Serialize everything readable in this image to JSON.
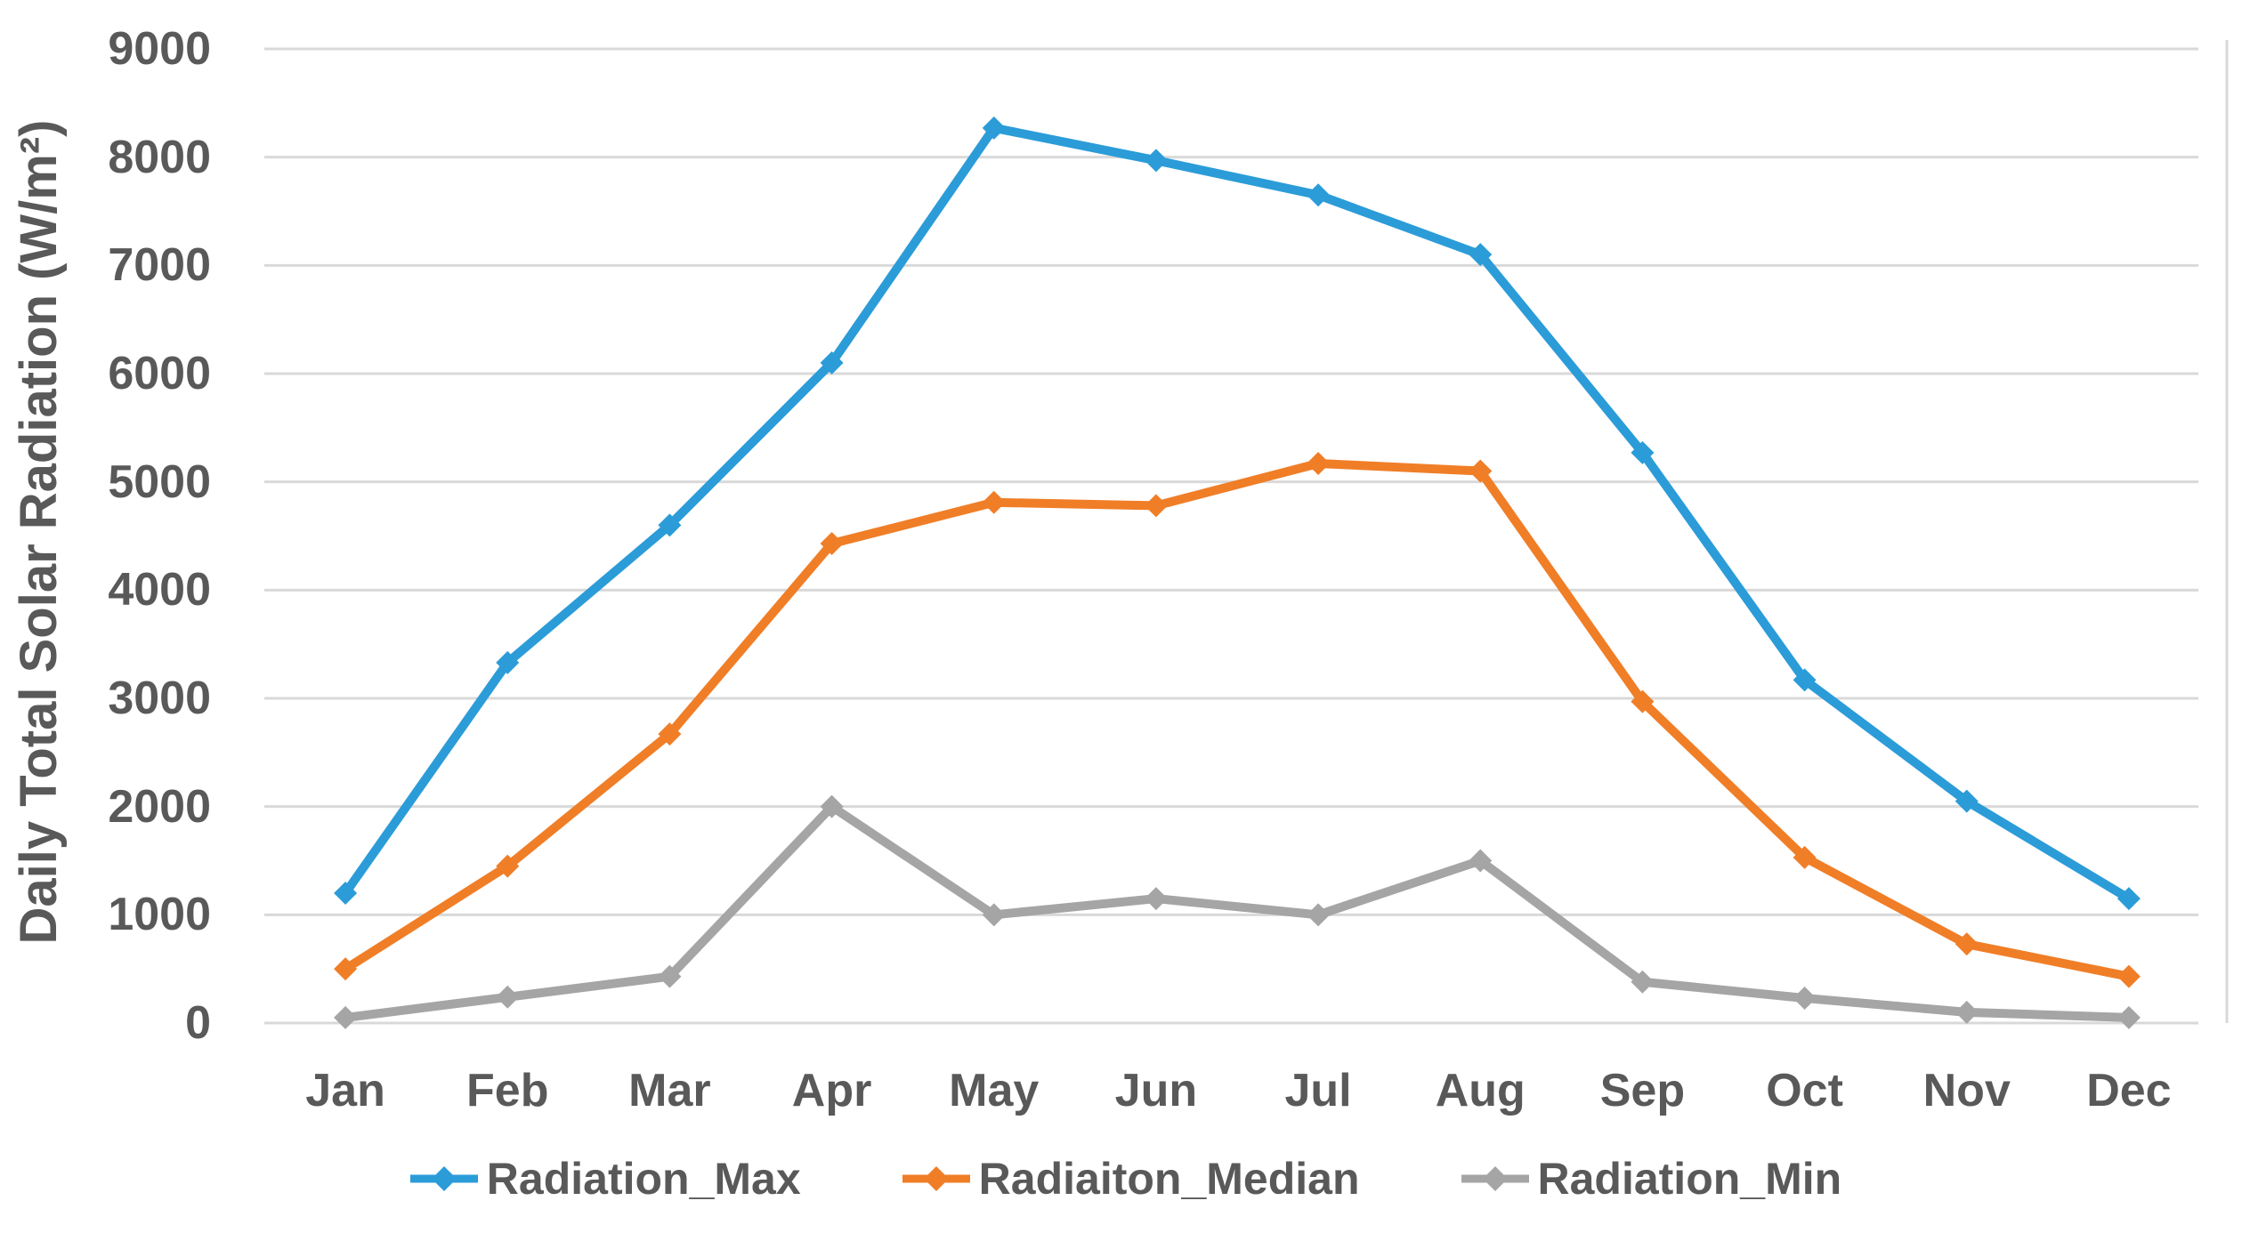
{
  "chart_data": {
    "type": "line",
    "title": "",
    "xlabel": "",
    "ylabel": "Daily Total Solar Radiation (W/m²)",
    "categories": [
      "Jan",
      "Feb",
      "Mar",
      "Apr",
      "May",
      "Jun",
      "Jul",
      "Aug",
      "Sep",
      "Oct",
      "Nov",
      "Dec"
    ],
    "series": [
      {
        "name": "Radiation_Max",
        "color": "#2B9CD8",
        "marker": "diamond",
        "values": [
          1200,
          3330,
          4600,
          6100,
          8270,
          7970,
          7650,
          7100,
          5270,
          3170,
          2050,
          1150
        ]
      },
      {
        "name": "Radiaiton_Median",
        "color": "#F07E27",
        "marker": "diamond",
        "values": [
          500,
          1450,
          2670,
          4430,
          4810,
          4780,
          5170,
          5100,
          2970,
          1530,
          730,
          430
        ]
      },
      {
        "name": "Radiation_Min",
        "color": "#A5A5A5",
        "marker": "diamond",
        "values": [
          50,
          240,
          430,
          2000,
          1000,
          1150,
          1000,
          1500,
          380,
          230,
          100,
          50
        ]
      }
    ],
    "ylim": [
      0,
      9000
    ],
    "yticks": [
      0,
      1000,
      2000,
      3000,
      4000,
      5000,
      6000,
      7000,
      8000,
      9000
    ],
    "grid": true,
    "legend_position": "bottom",
    "colors": {
      "grid": "#D9D9D9",
      "plot_border": "#D9D9D9",
      "axis_text": "#595959",
      "background": "#FFFFFF"
    }
  }
}
